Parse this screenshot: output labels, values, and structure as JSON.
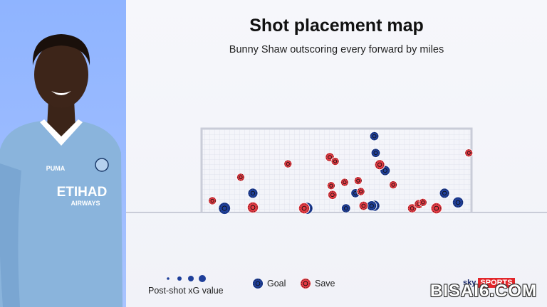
{
  "title": "Shot placement map",
  "subtitle": "Bunny Shaw outscoring every forward by miles",
  "player": {
    "shirt_sponsor": "ETIHAD",
    "shirt_sponsor_sub": "AIRWAYS",
    "kit_brand": "PUMA"
  },
  "legend": {
    "size_label": "Post-shot xG value",
    "goal_label": "Goal",
    "save_label": "Save"
  },
  "colors": {
    "goal": "#1f3f9a",
    "save": "#e53a43",
    "panel": "#9dbcff",
    "kit": "#8ab4dc"
  },
  "brand": {
    "sky": "sky",
    "sports": "SPORTS"
  },
  "watermark": "BISAI6.COM",
  "chart_data": {
    "type": "scatter",
    "title": "Shot placement map",
    "subtitle": "Bunny Shaw outscoring every forward by miles",
    "xlim": [
      0,
      100
    ],
    "ylim": [
      0,
      100
    ],
    "note": "x = horizontal position across goal mouth, y = height above goal line (0 = ground, 100 = crossbar)",
    "series": [
      {
        "name": "Goal",
        "points": [
          {
            "x": 8.5,
            "y": 5,
            "xg": 0.7
          },
          {
            "x": 39,
            "y": 5,
            "xg": 0.7
          },
          {
            "x": 64,
            "y": 8,
            "xg": 0.6
          },
          {
            "x": 68,
            "y": 50,
            "xg": 0.5
          },
          {
            "x": 64.5,
            "y": 71,
            "xg": 0.4
          },
          {
            "x": 19,
            "y": 23,
            "xg": 0.5
          },
          {
            "x": 57,
            "y": 23,
            "xg": 0.4
          },
          {
            "x": 53.5,
            "y": 5,
            "xg": 0.4
          },
          {
            "x": 95,
            "y": 12,
            "xg": 0.6
          },
          {
            "x": 90,
            "y": 23,
            "xg": 0.5
          },
          {
            "x": 63,
            "y": 8,
            "xg": 0.5
          },
          {
            "x": 64,
            "y": 91,
            "xg": 0.4
          }
        ]
      },
      {
        "name": "Save",
        "points": [
          {
            "x": 4,
            "y": 14,
            "xg": 0.3
          },
          {
            "x": 19,
            "y": 6,
            "xg": 0.6
          },
          {
            "x": 14.5,
            "y": 42,
            "xg": 0.3
          },
          {
            "x": 32,
            "y": 58,
            "xg": 0.3
          },
          {
            "x": 38,
            "y": 5,
            "xg": 0.6
          },
          {
            "x": 47.5,
            "y": 66,
            "xg": 0.4
          },
          {
            "x": 49.5,
            "y": 61,
            "xg": 0.3
          },
          {
            "x": 48,
            "y": 32,
            "xg": 0.3
          },
          {
            "x": 48.5,
            "y": 21,
            "xg": 0.4
          },
          {
            "x": 53,
            "y": 36,
            "xg": 0.3
          },
          {
            "x": 58,
            "y": 38,
            "xg": 0.3
          },
          {
            "x": 59,
            "y": 25,
            "xg": 0.3
          },
          {
            "x": 66,
            "y": 57,
            "xg": 0.5
          },
          {
            "x": 71,
            "y": 33,
            "xg": 0.3
          },
          {
            "x": 60,
            "y": 8,
            "xg": 0.4
          },
          {
            "x": 78,
            "y": 5,
            "xg": 0.4
          },
          {
            "x": 80.5,
            "y": 10,
            "xg": 0.4
          },
          {
            "x": 82,
            "y": 12,
            "xg": 0.3
          },
          {
            "x": 87,
            "y": 5,
            "xg": 0.6
          },
          {
            "x": 99,
            "y": 71,
            "xg": 0.3
          }
        ]
      }
    ],
    "legend_position": "bottom-left"
  }
}
